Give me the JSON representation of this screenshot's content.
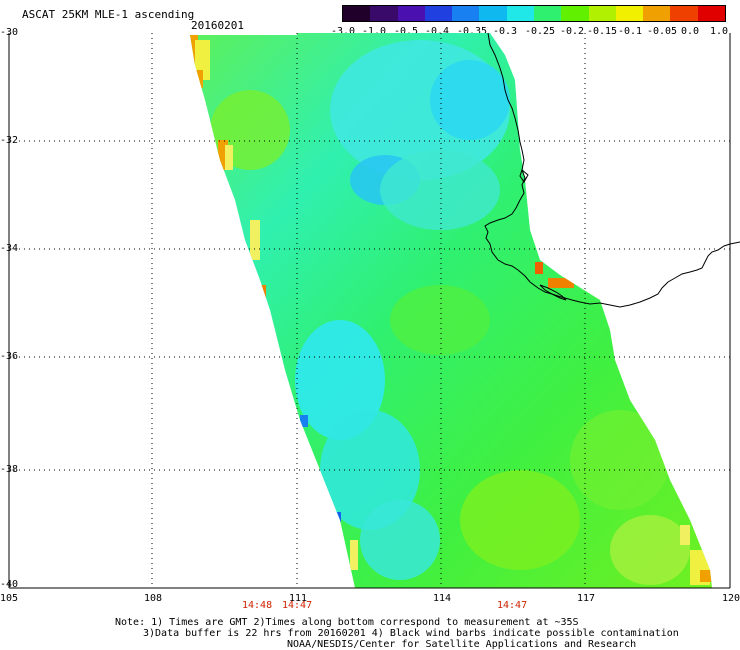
{
  "header": {
    "product_title": "ASCAT 25KM MLE-1 ascending",
    "date": "20160201"
  },
  "colorbar": {
    "labels": [
      "-3.0",
      "-1.0",
      "-0.5",
      "-0.4",
      "-0.35",
      "-0.3",
      "-0.25",
      "-0.2",
      "-0.15",
      "-0.1",
      "-0.05",
      "0.0",
      "1.0"
    ],
    "colors": [
      "#20002a",
      "#3a0a6a",
      "#4a10b0",
      "#2040e0",
      "#1880f0",
      "#10b8f0",
      "#20e8e8",
      "#30f070",
      "#60f000",
      "#b0f000",
      "#f0f000",
      "#f0a000",
      "#f04000",
      "#e00000"
    ]
  },
  "axes": {
    "lat_labels": [
      "-30",
      "-32",
      "-34",
      "-36",
      "-38",
      "-40"
    ],
    "lon_labels": [
      "105",
      "108",
      "111",
      "114",
      "117",
      "120"
    ]
  },
  "time_labels": [
    "14:48",
    "14:47",
    "14:47"
  ],
  "notes": {
    "line1": "Note: 1) Times are GMT 2)Times along bottom correspond to measurement at ~35S",
    "line2": "3)Data buffer is 22 hrs from 20160201 4) Black wind barbs indicate possible contamination",
    "line3": "NOAA/NESDIS/Center for Satellite Applications and Research"
  },
  "colors": {
    "background": "#ffffff",
    "grid": "#000000",
    "coastline": "#000000",
    "time_label": "#cc2200"
  }
}
